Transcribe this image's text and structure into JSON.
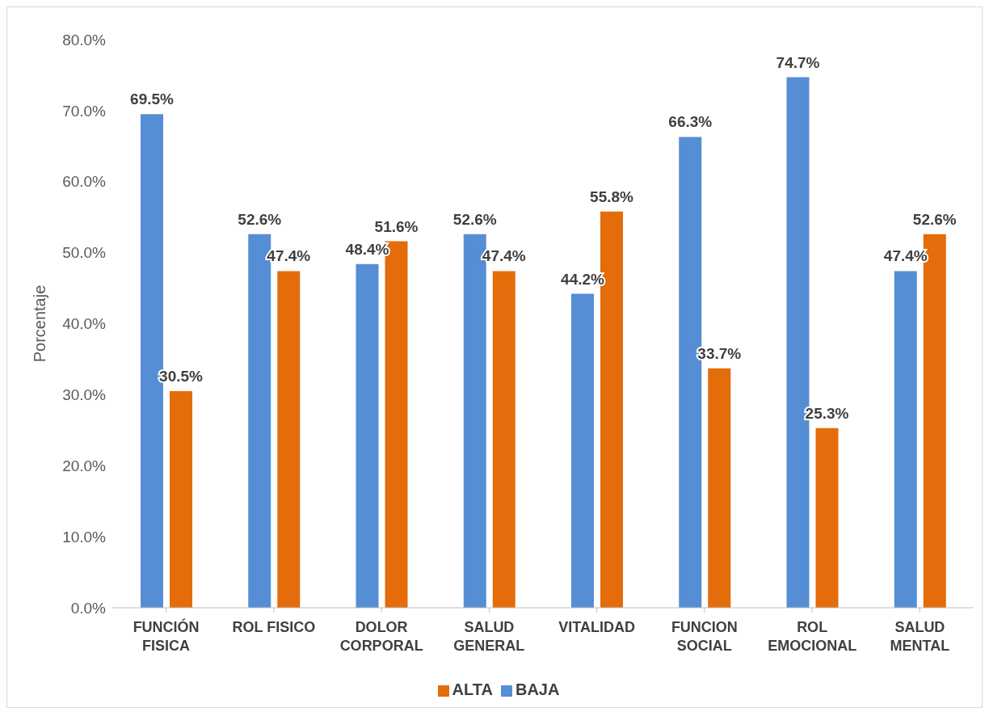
{
  "chart_data": {
    "type": "bar",
    "ylabel": "Porcentaje",
    "categories": [
      "FUNCIÓN FISICA",
      "ROL FISICO",
      "DOLOR CORPORAL",
      "SALUD GENERAL",
      "VITALIDAD",
      "FUNCION SOCIAL",
      "ROL EMOCIONAL",
      "SALUD MENTAL"
    ],
    "series": [
      {
        "name": "BAJA",
        "color": "#558ed5",
        "values": [
          69.5,
          52.6,
          48.4,
          52.6,
          44.2,
          66.3,
          74.7,
          47.4
        ],
        "value_labels": [
          "69.5%",
          "52.6%",
          "48.4%",
          "52.6%",
          "44.2%",
          "66.3%",
          "74.7%",
          "47.4%"
        ]
      },
      {
        "name": "ALTA",
        "color": "#e46c0a",
        "values": [
          30.5,
          47.4,
          51.6,
          47.4,
          55.8,
          33.7,
          25.3,
          52.6
        ],
        "value_labels": [
          "30.5%",
          "47.4%",
          "51.6%",
          "47.4%",
          "55.8%",
          "33.7%",
          "25.3%",
          "52.6%"
        ]
      }
    ],
    "ylim": [
      0,
      80
    ],
    "yticks": [
      {
        "value": 0,
        "label": "0.0%"
      },
      {
        "value": 10,
        "label": "10.0%"
      },
      {
        "value": 20,
        "label": "20.0%"
      },
      {
        "value": 30,
        "label": "30.0%"
      },
      {
        "value": 40,
        "label": "40.0%"
      },
      {
        "value": 50,
        "label": "50.0%"
      },
      {
        "value": 60,
        "label": "60.0%"
      },
      {
        "value": 70,
        "label": "70.0%"
      },
      {
        "value": 80,
        "label": "80.0%"
      }
    ],
    "grid": false,
    "legend": "bottom"
  }
}
